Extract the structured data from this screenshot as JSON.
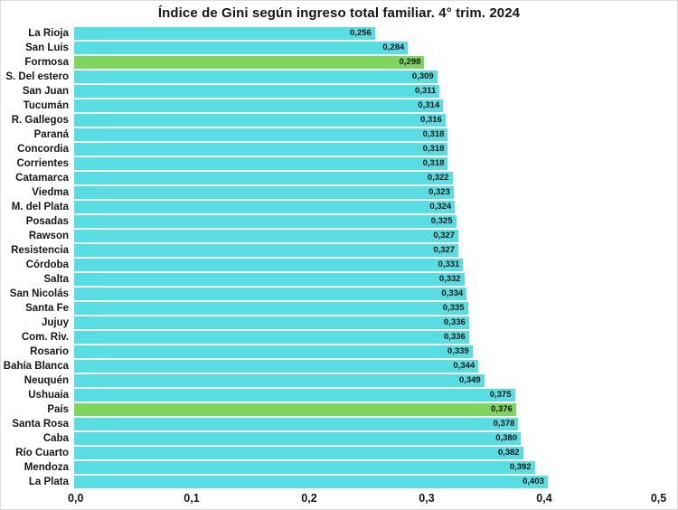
{
  "title": "Índice de Gini según ingreso total familiar. 4° trim. 2024",
  "chart_data": {
    "type": "bar",
    "orientation": "horizontal",
    "title": "Índice de Gini según ingreso total familiar. 4° trim. 2024",
    "xlabel": "",
    "ylabel": "",
    "xlim": [
      0.0,
      0.5
    ],
    "x_ticks": [
      {
        "label": "0,0",
        "value": 0.0
      },
      {
        "label": "0,1",
        "value": 0.1
      },
      {
        "label": "0,2",
        "value": 0.2
      },
      {
        "label": "0,3",
        "value": 0.3
      },
      {
        "label": "0,4",
        "value": 0.4
      },
      {
        "label": "0,5",
        "value": 0.5
      }
    ],
    "grid": false,
    "legend": false,
    "colors": {
      "bar_default": "#57DEE3",
      "bar_highlight": "#7FD65C",
      "text": "#161616",
      "background": "#ffffff"
    },
    "bars": [
      {
        "category": "La Rioja",
        "value": 0.256,
        "label": "0,256",
        "highlight": false
      },
      {
        "category": "San Luis",
        "value": 0.284,
        "label": "0,284",
        "highlight": false
      },
      {
        "category": "Formosa",
        "value": 0.298,
        "label": "0,298",
        "highlight": true
      },
      {
        "category": "S. Del estero",
        "value": 0.309,
        "label": "0,309",
        "highlight": false
      },
      {
        "category": "San Juan",
        "value": 0.311,
        "label": "0,311",
        "highlight": false
      },
      {
        "category": "Tucumán",
        "value": 0.314,
        "label": "0,314",
        "highlight": false
      },
      {
        "category": "R. Gallegos",
        "value": 0.316,
        "label": "0,316",
        "highlight": false
      },
      {
        "category": "Paraná",
        "value": 0.318,
        "label": "0,318",
        "highlight": false
      },
      {
        "category": "Concordia",
        "value": 0.318,
        "label": "0,318",
        "highlight": false
      },
      {
        "category": "Corrientes",
        "value": 0.318,
        "label": "0,318",
        "highlight": false
      },
      {
        "category": "Catamarca",
        "value": 0.322,
        "label": "0,322",
        "highlight": false
      },
      {
        "category": "Viedma",
        "value": 0.323,
        "label": "0,323",
        "highlight": false
      },
      {
        "category": "M. del Plata",
        "value": 0.324,
        "label": "0,324",
        "highlight": false
      },
      {
        "category": "Posadas",
        "value": 0.325,
        "label": "0,325",
        "highlight": false
      },
      {
        "category": "Rawson",
        "value": 0.327,
        "label": "0,327",
        "highlight": false
      },
      {
        "category": "Resistencia",
        "value": 0.327,
        "label": "0,327",
        "highlight": false
      },
      {
        "category": "Córdoba",
        "value": 0.331,
        "label": "0,331",
        "highlight": false
      },
      {
        "category": "Salta",
        "value": 0.332,
        "label": "0,332",
        "highlight": false
      },
      {
        "category": "San Nicolás",
        "value": 0.334,
        "label": "0,334",
        "highlight": false
      },
      {
        "category": "Santa Fe",
        "value": 0.335,
        "label": "0,335",
        "highlight": false
      },
      {
        "category": "Jujuy",
        "value": 0.336,
        "label": "0,336",
        "highlight": false
      },
      {
        "category": "Com. Riv.",
        "value": 0.336,
        "label": "0,336",
        "highlight": false
      },
      {
        "category": "Rosario",
        "value": 0.339,
        "label": "0,339",
        "highlight": false
      },
      {
        "category": "Bahía Blanca",
        "value": 0.344,
        "label": "0,344",
        "highlight": false
      },
      {
        "category": "Neuquén",
        "value": 0.349,
        "label": "0,349",
        "highlight": false
      },
      {
        "category": "Ushuaia",
        "value": 0.375,
        "label": "0,375",
        "highlight": false
      },
      {
        "category": "País",
        "value": 0.376,
        "label": "0,376",
        "highlight": true
      },
      {
        "category": "Santa Rosa",
        "value": 0.378,
        "label": "0,378",
        "highlight": false
      },
      {
        "category": "Caba",
        "value": 0.38,
        "label": "0,380",
        "highlight": false
      },
      {
        "category": "Río Cuarto",
        "value": 0.382,
        "label": "0,382",
        "highlight": false
      },
      {
        "category": "Mendoza",
        "value": 0.392,
        "label": "0,392",
        "highlight": false
      },
      {
        "category": "La Plata",
        "value": 0.403,
        "label": "0,403",
        "highlight": false
      }
    ]
  }
}
